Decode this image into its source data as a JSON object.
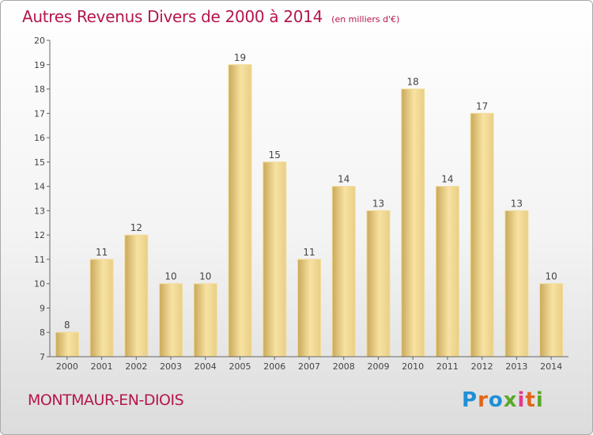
{
  "header": {
    "title": "Autres Revenus Divers de 2000 à 2014",
    "unit": "(en milliers d'€)"
  },
  "footer": {
    "commune": "MONTMAUR-EN-DIOIS",
    "logo": "Proxiti"
  },
  "colors": {
    "title": "#b5174a",
    "bar_light": "#f8e2a2",
    "bar_dark": "#c9a95a",
    "axis": "#666666"
  },
  "chart_data": {
    "type": "bar",
    "categories": [
      "2000",
      "2001",
      "2002",
      "2003",
      "2004",
      "2005",
      "2006",
      "2007",
      "2008",
      "2009",
      "2010",
      "2011",
      "2012",
      "2013",
      "2014"
    ],
    "values": [
      8,
      11,
      12,
      10,
      10,
      19,
      15,
      11,
      14,
      13,
      18,
      14,
      17,
      13,
      10
    ],
    "title": "Autres Revenus Divers de 2000 à 2014",
    "xlabel": "",
    "ylabel": "",
    "ylim": [
      7,
      20
    ],
    "yticks": [
      7,
      8,
      9,
      10,
      11,
      12,
      13,
      14,
      15,
      16,
      17,
      18,
      19,
      20
    ],
    "grid": false,
    "data_labels": true
  }
}
